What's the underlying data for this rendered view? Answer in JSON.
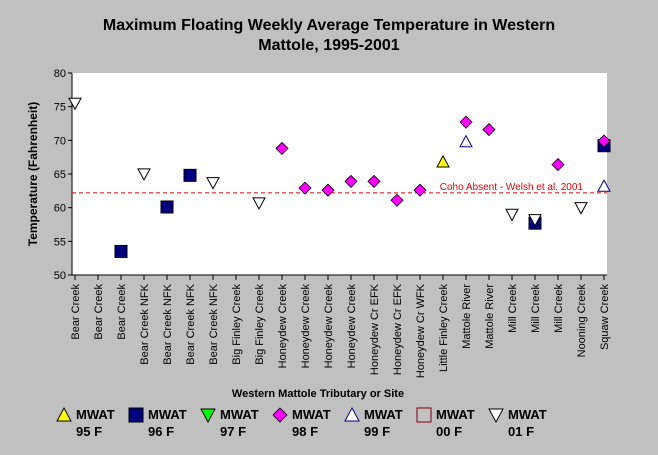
{
  "chart_data": {
    "type": "scatter",
    "title": [
      "Maximum Floating Weekly Average Temperature in Western",
      "Mattole, 1995-2001"
    ],
    "xlabel": "Western Mattole Tributary or Site",
    "ylabel": "Temperature (Fahrenheit)",
    "ylim": [
      50,
      80
    ],
    "yticks": [
      50,
      55,
      60,
      65,
      70,
      75,
      80
    ],
    "grid": false,
    "legend_position": "bottom",
    "categories": [
      "Bear Creek",
      "Bear Creek",
      "Bear Creek",
      "Bear Creek NFK",
      "Bear Creek NFK",
      "Bear Creek NFK",
      "Bear Creek NFK",
      "Big Finley Creek",
      "Big Finley Creek",
      "Honeydew Creek",
      "Honeydew Creek",
      "Honeydew Creek",
      "Honeydew Creek",
      "Honeydew Cr EFK",
      "Honeydew Cr EFK",
      "Honeydew Cr WFK",
      "Little Finley Creek",
      "Mattole River",
      "Mattole River",
      "Mill Creek",
      "Mill Creek",
      "Mill Creek",
      "Nooning Creek",
      "Squaw Creek"
    ],
    "series": [
      {
        "name": "MWAT 95 F",
        "label_top": "MWAT",
        "label_bottom": "95 F",
        "marker": "triangle-up-filled",
        "color": "#ffff00",
        "points": [
          [
            16,
            66.8
          ]
        ]
      },
      {
        "name": "MWAT 96 F",
        "label_top": "MWAT",
        "label_bottom": "96 F",
        "marker": "square-filled",
        "color": "#00007f",
        "points": [
          [
            2,
            53.5
          ],
          [
            4,
            60.1
          ],
          [
            5,
            64.8
          ],
          [
            20,
            57.7
          ],
          [
            23,
            69.2
          ]
        ]
      },
      {
        "name": "MWAT 97 F",
        "label_top": "MWAT",
        "label_bottom": "97 F",
        "marker": "triangle-down-filled",
        "color": "#00ff00",
        "points": []
      },
      {
        "name": "MWAT 98 F",
        "label_top": "MWAT",
        "label_bottom": "98 F",
        "marker": "diamond-filled",
        "color": "#ff00ff",
        "points": [
          [
            9,
            68.8
          ],
          [
            10,
            62.9
          ],
          [
            11,
            62.6
          ],
          [
            12,
            63.9
          ],
          [
            13,
            63.9
          ],
          [
            14,
            61.1
          ],
          [
            15,
            62.6
          ],
          [
            17,
            72.7
          ],
          [
            18,
            71.6
          ],
          [
            21,
            66.4
          ],
          [
            23,
            69.9
          ]
        ]
      },
      {
        "name": "MWAT 99 F",
        "label_top": "MWAT",
        "label_bottom": "99 F",
        "marker": "triangle-up-open",
        "color": "#00007f",
        "points": [
          [
            17,
            69.8
          ],
          [
            23,
            63.2
          ]
        ]
      },
      {
        "name": "MWAT 00 F",
        "label_top": "MWAT",
        "label_bottom": "00 F",
        "marker": "square-open",
        "color": "#7f0000",
        "points": []
      },
      {
        "name": "MWAT 01 F",
        "label_top": "MWAT",
        "label_bottom": "01 F",
        "marker": "triangle-down-open",
        "color": "#000000",
        "points": [
          [
            0,
            75.5
          ],
          [
            3,
            65.0
          ],
          [
            6,
            63.7
          ],
          [
            8,
            60.7
          ],
          [
            19,
            59.0
          ],
          [
            20,
            58.2
          ],
          [
            22,
            60.0
          ]
        ]
      }
    ],
    "reference_line": {
      "y": 62.2,
      "label": "Coho Absent - Welsh et al. 2001",
      "color": "#e00000",
      "style": "dashed"
    }
  }
}
